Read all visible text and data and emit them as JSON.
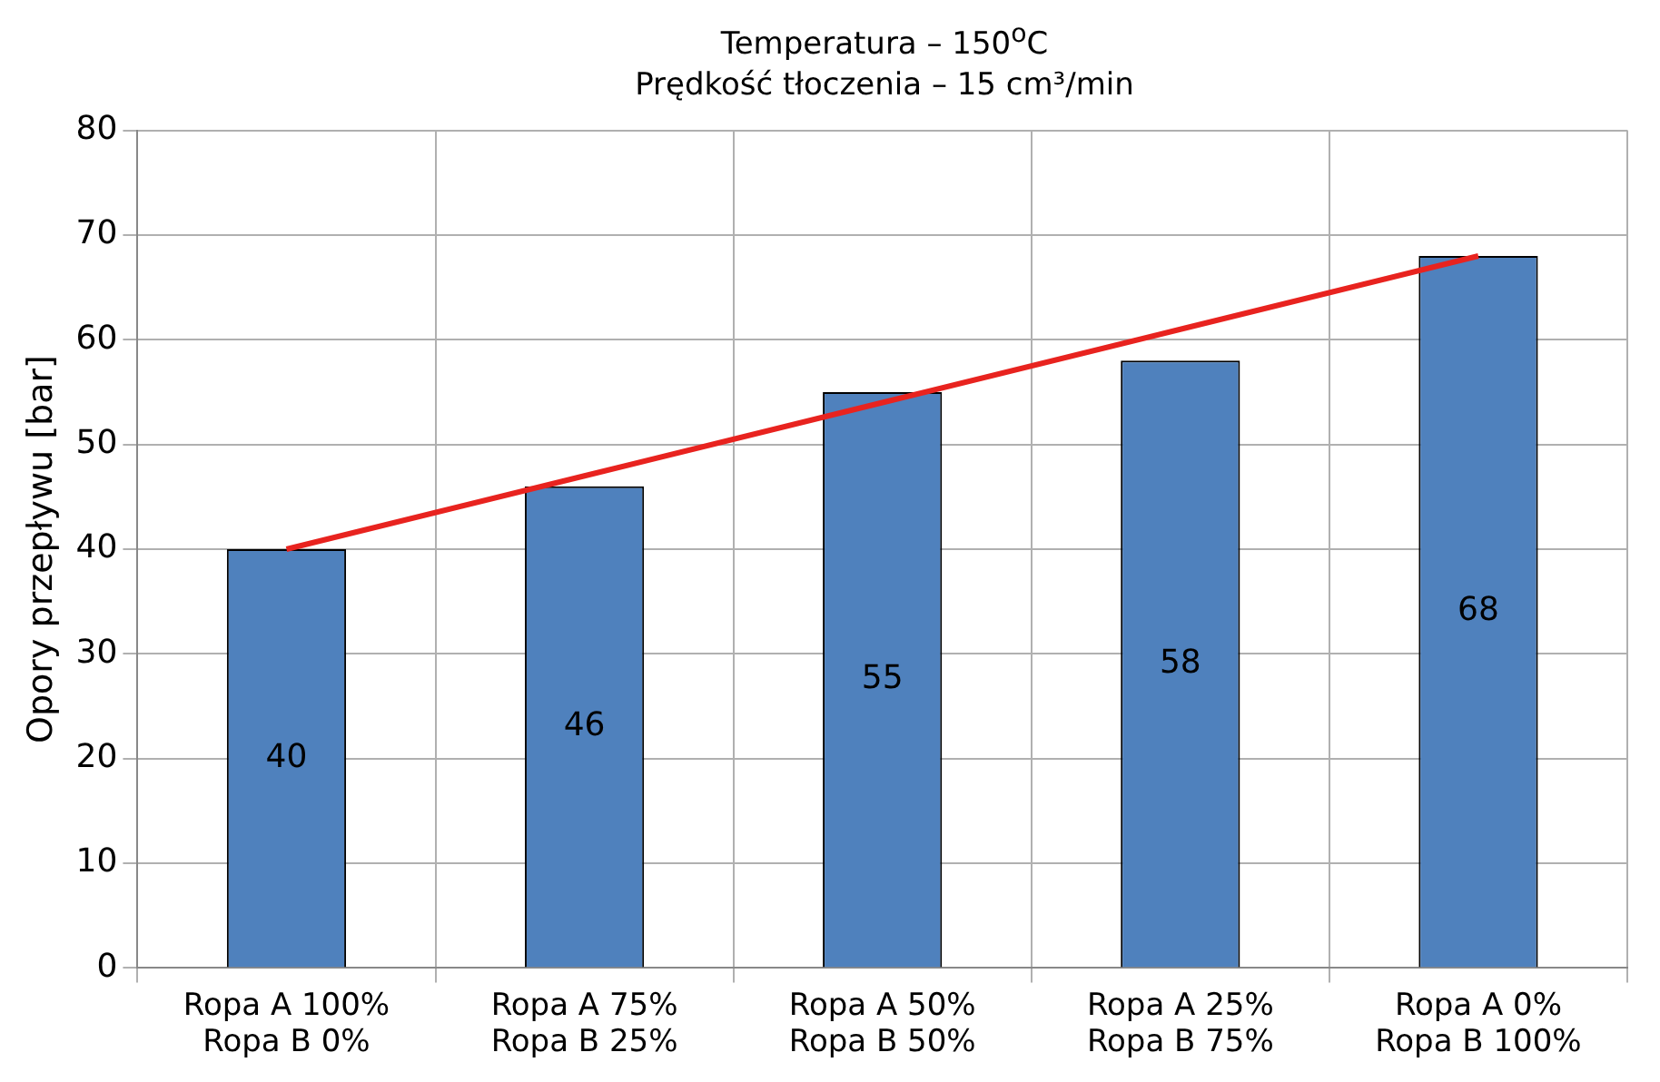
{
  "chart_data": {
    "type": "bar",
    "title": "Temperatura – 150$^{o}$C",
    "subtitle": "Prędkość tłoczenia – 15 cm³/min",
    "ylabel": "Opory przepływu [bar]",
    "categories": [
      "Ropa A 100%\nRopa B 0%",
      "Ropa A 75%\nRopa B 25%",
      "Ropa A 50%\nRopa B 50%",
      "Ropa A 25%\nRopa B 75%",
      "Ropa A 0%\nRopa B 100%"
    ],
    "series": [
      {
        "color": "#4f81bd",
        "values": [
          40,
          46,
          55,
          58,
          68
        ],
        "value_labels": [
          "40",
          "46",
          "55",
          "58",
          "68"
        ]
      },
      {
        "type": "line",
        "color": "#e8231f",
        "values": [
          40,
          47,
          54,
          61,
          68
        ],
        "marker": "none",
        "line_style": "solid"
      }
    ],
    "ylim": [
      0,
      80
    ],
    "yticks": [
      0,
      10,
      20,
      30,
      40,
      50,
      60,
      70,
      80
    ],
    "grid": true,
    "legend": false
  }
}
